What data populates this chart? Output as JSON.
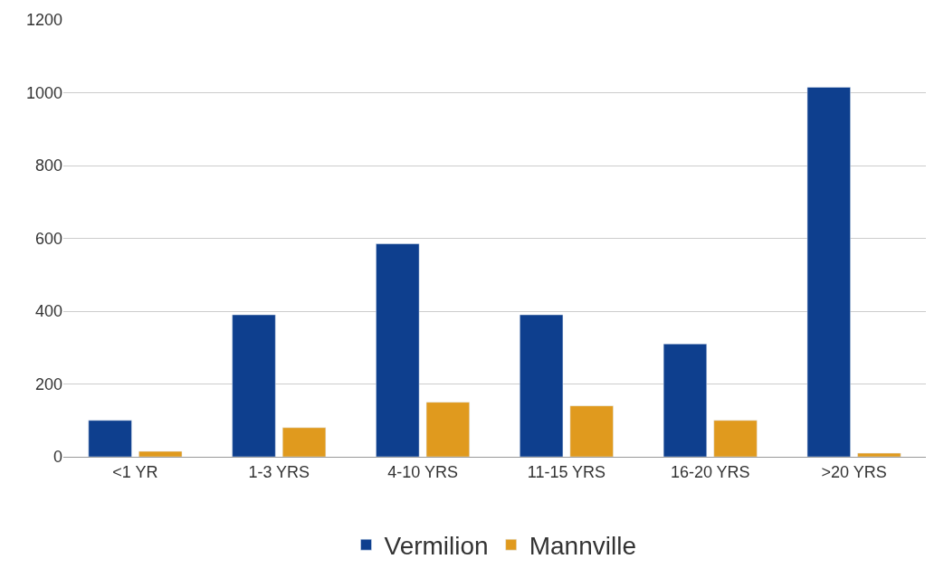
{
  "chart_data": {
    "type": "bar",
    "categories": [
      "<1 YR",
      "1-3 YRS",
      "4-10 YRS",
      "11-15 YRS",
      "16-20 YRS",
      ">20 YRS"
    ],
    "series": [
      {
        "name": "Vermilion",
        "color": "#0e3f8e",
        "values": [
          100,
          390,
          585,
          390,
          310,
          1015
        ]
      },
      {
        "name": "Mannville",
        "color": "#e09a1e",
        "values": [
          15,
          80,
          150,
          140,
          100,
          10
        ]
      }
    ],
    "ylim": [
      0,
      1200
    ],
    "yticks": [
      0,
      200,
      400,
      600,
      800,
      1000,
      1200
    ],
    "grid": "y",
    "legend": "bottom"
  }
}
